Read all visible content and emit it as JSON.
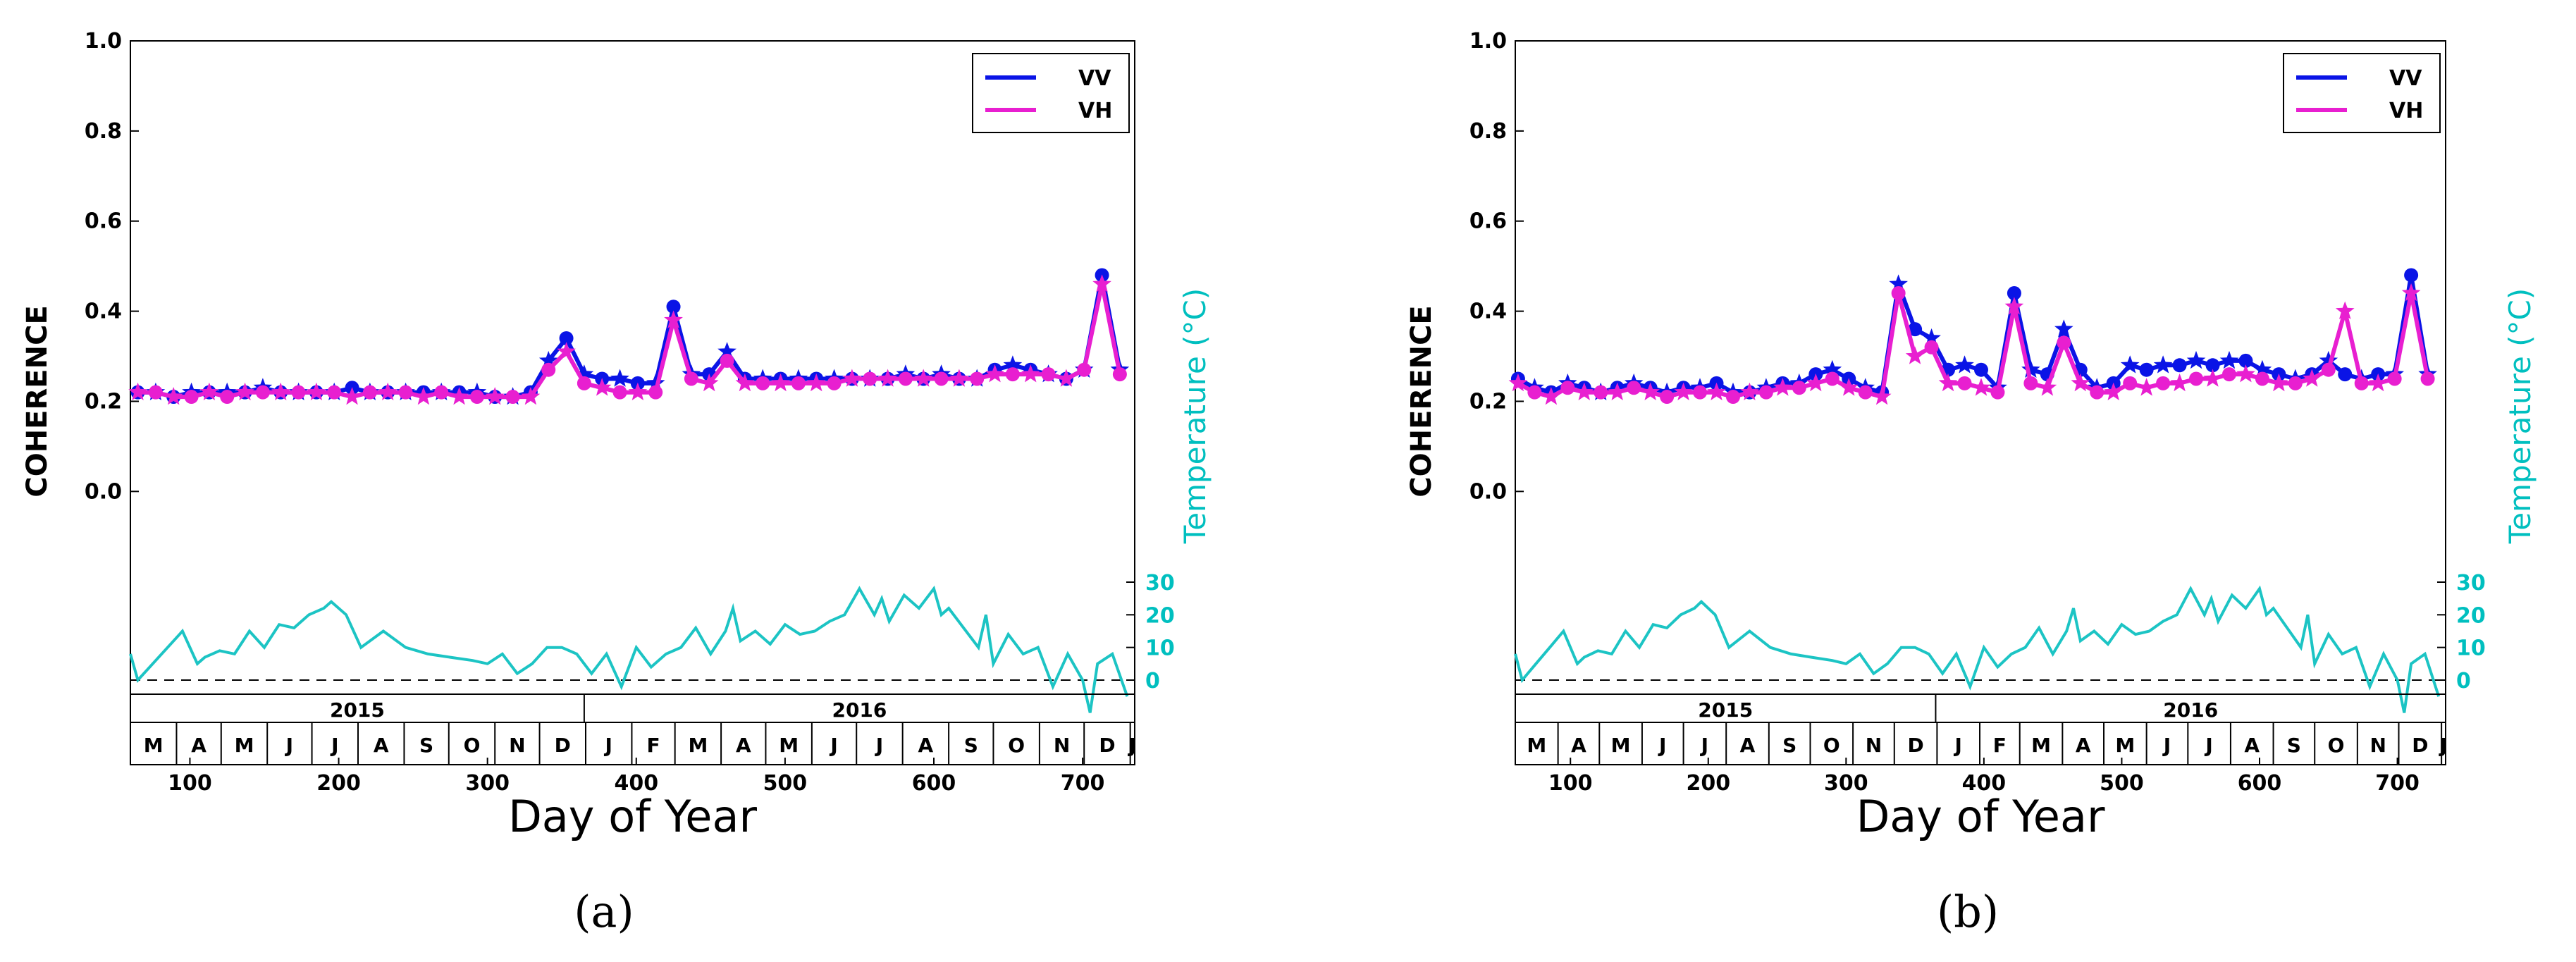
{
  "colors": {
    "vv": "#0a14e6",
    "vh": "#e81fd0",
    "temp": "#1cc4c4",
    "axis": "#000000"
  },
  "chart_data": [
    {
      "id": "a",
      "type": "line",
      "caption": "(a)",
      "xlabel": "Day of Year",
      "ylabel": "COHERENCE",
      "temp_label": "Temperature (°C)",
      "xlim": [
        60,
        735
      ],
      "ylim": [
        -0.45,
        1.0
      ],
      "yticks": [
        "0.0",
        "0.2",
        "0.4",
        "0.6",
        "0.8",
        "1.0"
      ],
      "ytick_values": [
        0.0,
        0.2,
        0.4,
        0.6,
        0.8,
        1.0
      ],
      "xticks": [
        "100",
        "200",
        "300",
        "400",
        "500",
        "600",
        "700"
      ],
      "xtick_values": [
        100,
        200,
        300,
        400,
        500,
        600,
        700
      ],
      "temp_ticks": [
        "0",
        "10",
        "20",
        "30"
      ],
      "temp_tick_values": [
        0,
        10,
        20,
        30
      ],
      "years": [
        {
          "label": "2015",
          "start": 60,
          "end": 365
        },
        {
          "label": "2016",
          "start": 365,
          "end": 735
        }
      ],
      "months": [
        "M",
        "A",
        "M",
        "J",
        "J",
        "A",
        "S",
        "O",
        "N",
        "D",
        "J",
        "F",
        "M",
        "A",
        "M",
        "J",
        "J",
        "A",
        "S",
        "O",
        "N",
        "D",
        "J"
      ],
      "month_starts": [
        60,
        91,
        121,
        152,
        182,
        213,
        244,
        274,
        305,
        335,
        366,
        397,
        426,
        457,
        487,
        518,
        548,
        579,
        610,
        640,
        671,
        701,
        732
      ],
      "legend": [
        "VV",
        "VH"
      ],
      "series": [
        {
          "name": "VV",
          "x": [
            65,
            77,
            89,
            101,
            113,
            125,
            137,
            149,
            161,
            173,
            185,
            197,
            209,
            221,
            233,
            245,
            257,
            269,
            281,
            293,
            305,
            317,
            329,
            341,
            353,
            365,
            377,
            389,
            401,
            413,
            425,
            437,
            449,
            461,
            473,
            485,
            497,
            509,
            521,
            533,
            545,
            557,
            569,
            581,
            593,
            605,
            617,
            629,
            641,
            653,
            665,
            677,
            689,
            701,
            713,
            725
          ],
          "y": [
            0.22,
            0.22,
            0.21,
            0.22,
            0.22,
            0.22,
            0.22,
            0.23,
            0.22,
            0.22,
            0.22,
            0.22,
            0.23,
            0.22,
            0.22,
            0.22,
            0.22,
            0.22,
            0.22,
            0.22,
            0.21,
            0.21,
            0.22,
            0.29,
            0.34,
            0.26,
            0.25,
            0.25,
            0.24,
            0.24,
            0.41,
            0.26,
            0.26,
            0.31,
            0.25,
            0.25,
            0.25,
            0.25,
            0.25,
            0.25,
            0.25,
            0.25,
            0.25,
            0.26,
            0.25,
            0.26,
            0.25,
            0.25,
            0.27,
            0.28,
            0.27,
            0.26,
            0.25,
            0.27,
            0.48,
            0.27
          ]
        },
        {
          "name": "VH",
          "x": [
            65,
            77,
            89,
            101,
            113,
            125,
            137,
            149,
            161,
            173,
            185,
            197,
            209,
            221,
            233,
            245,
            257,
            269,
            281,
            293,
            305,
            317,
            329,
            341,
            353,
            365,
            377,
            389,
            401,
            413,
            425,
            437,
            449,
            461,
            473,
            485,
            497,
            509,
            521,
            533,
            545,
            557,
            569,
            581,
            593,
            605,
            617,
            629,
            641,
            653,
            665,
            677,
            689,
            701,
            713,
            725
          ],
          "y": [
            0.22,
            0.22,
            0.21,
            0.21,
            0.22,
            0.21,
            0.22,
            0.22,
            0.22,
            0.22,
            0.22,
            0.22,
            0.21,
            0.22,
            0.22,
            0.22,
            0.21,
            0.22,
            0.21,
            0.21,
            0.21,
            0.21,
            0.21,
            0.27,
            0.31,
            0.24,
            0.23,
            0.22,
            0.22,
            0.22,
            0.38,
            0.25,
            0.24,
            0.29,
            0.24,
            0.24,
            0.24,
            0.24,
            0.24,
            0.24,
            0.25,
            0.25,
            0.25,
            0.25,
            0.25,
            0.25,
            0.25,
            0.25,
            0.26,
            0.26,
            0.26,
            0.26,
            0.25,
            0.27,
            0.46,
            0.26
          ]
        },
        {
          "name": "Temperature",
          "x": [
            60,
            65,
            75,
            85,
            95,
            105,
            110,
            120,
            130,
            140,
            150,
            160,
            170,
            180,
            190,
            195,
            205,
            215,
            230,
            245,
            260,
            275,
            290,
            300,
            310,
            320,
            330,
            340,
            350,
            360,
            370,
            380,
            390,
            400,
            410,
            420,
            430,
            440,
            450,
            460,
            465,
            470,
            480,
            490,
            500,
            510,
            520,
            530,
            540,
            550,
            560,
            565,
            570,
            580,
            590,
            600,
            605,
            610,
            620,
            630,
            635,
            640,
            650,
            660,
            670,
            680,
            690,
            700,
            705,
            710,
            720,
            730
          ],
          "y": [
            8,
            0,
            5,
            10,
            15,
            5,
            7,
            9,
            8,
            15,
            10,
            17,
            16,
            20,
            22,
            24,
            20,
            10,
            15,
            10,
            8,
            7,
            6,
            5,
            8,
            2,
            5,
            10,
            10,
            8,
            2,
            8,
            -2,
            10,
            4,
            8,
            10,
            16,
            8,
            15,
            22,
            12,
            15,
            11,
            17,
            14,
            15,
            18,
            20,
            28,
            20,
            25,
            18,
            26,
            22,
            28,
            20,
            22,
            16,
            10,
            20,
            5,
            14,
            8,
            10,
            -2,
            8,
            0,
            -10,
            5,
            8,
            -5
          ]
        }
      ]
    },
    {
      "id": "b",
      "type": "line",
      "caption": "(b)",
      "xlabel": "Day of Year",
      "ylabel": "COHERENCE",
      "temp_label": "Temperature (°C)",
      "xlim": [
        60,
        735
      ],
      "ylim": [
        -0.45,
        1.0
      ],
      "yticks": [
        "0.0",
        "0.2",
        "0.4",
        "0.6",
        "0.8",
        "1.0"
      ],
      "ytick_values": [
        0.0,
        0.2,
        0.4,
        0.6,
        0.8,
        1.0
      ],
      "xticks": [
        "100",
        "200",
        "300",
        "400",
        "500",
        "600",
        "700"
      ],
      "xtick_values": [
        100,
        200,
        300,
        400,
        500,
        600,
        700
      ],
      "temp_ticks": [
        "0",
        "10",
        "20",
        "30"
      ],
      "temp_tick_values": [
        0,
        10,
        20,
        30
      ],
      "years": [
        {
          "label": "2015",
          "start": 60,
          "end": 365
        },
        {
          "label": "2016",
          "start": 365,
          "end": 735
        }
      ],
      "months": [
        "M",
        "A",
        "M",
        "J",
        "J",
        "A",
        "S",
        "O",
        "N",
        "D",
        "J",
        "F",
        "M",
        "A",
        "M",
        "J",
        "J",
        "A",
        "S",
        "O",
        "N",
        "D",
        "J"
      ],
      "month_starts": [
        60,
        91,
        121,
        152,
        182,
        213,
        244,
        274,
        305,
        335,
        366,
        397,
        426,
        457,
        487,
        518,
        548,
        579,
        610,
        640,
        671,
        701,
        732
      ],
      "legend": [
        "VV",
        "VH"
      ],
      "series": [
        {
          "name": "VV",
          "x": [
            62,
            74,
            86,
            98,
            110,
            122,
            134,
            146,
            158,
            170,
            182,
            194,
            206,
            218,
            230,
            242,
            254,
            266,
            278,
            290,
            302,
            314,
            326,
            338,
            350,
            362,
            374,
            386,
            398,
            410,
            422,
            434,
            446,
            458,
            470,
            482,
            494,
            506,
            518,
            530,
            542,
            554,
            566,
            578,
            590,
            602,
            614,
            626,
            638,
            650,
            662,
            674,
            686,
            698,
            710,
            722
          ],
          "y": [
            0.25,
            0.23,
            0.22,
            0.24,
            0.23,
            0.22,
            0.23,
            0.24,
            0.23,
            0.22,
            0.23,
            0.23,
            0.24,
            0.22,
            0.22,
            0.23,
            0.24,
            0.24,
            0.26,
            0.27,
            0.25,
            0.23,
            0.22,
            0.46,
            0.36,
            0.34,
            0.27,
            0.28,
            0.27,
            0.23,
            0.44,
            0.27,
            0.26,
            0.36,
            0.27,
            0.23,
            0.24,
            0.28,
            0.27,
            0.28,
            0.28,
            0.29,
            0.28,
            0.29,
            0.29,
            0.27,
            0.26,
            0.25,
            0.26,
            0.29,
            0.26,
            0.25,
            0.26,
            0.26,
            0.48,
            0.26
          ]
        },
        {
          "name": "VH",
          "x": [
            62,
            74,
            86,
            98,
            110,
            122,
            134,
            146,
            158,
            170,
            182,
            194,
            206,
            218,
            230,
            242,
            254,
            266,
            278,
            290,
            302,
            314,
            326,
            338,
            350,
            362,
            374,
            386,
            398,
            410,
            422,
            434,
            446,
            458,
            470,
            482,
            494,
            506,
            518,
            530,
            542,
            554,
            566,
            578,
            590,
            602,
            614,
            626,
            638,
            650,
            662,
            674,
            686,
            698,
            710,
            722
          ],
          "y": [
            0.24,
            0.22,
            0.21,
            0.23,
            0.22,
            0.22,
            0.22,
            0.23,
            0.22,
            0.21,
            0.22,
            0.22,
            0.22,
            0.21,
            0.22,
            0.22,
            0.23,
            0.23,
            0.24,
            0.25,
            0.23,
            0.22,
            0.21,
            0.44,
            0.3,
            0.32,
            0.24,
            0.24,
            0.23,
            0.22,
            0.41,
            0.24,
            0.23,
            0.33,
            0.24,
            0.22,
            0.22,
            0.24,
            0.23,
            0.24,
            0.24,
            0.25,
            0.25,
            0.26,
            0.26,
            0.25,
            0.24,
            0.24,
            0.25,
            0.27,
            0.4,
            0.24,
            0.24,
            0.25,
            0.44,
            0.25
          ]
        },
        {
          "name": "Temperature",
          "x": [
            60,
            65,
            75,
            85,
            95,
            105,
            110,
            120,
            130,
            140,
            150,
            160,
            170,
            180,
            190,
            195,
            205,
            215,
            230,
            245,
            260,
            275,
            290,
            300,
            310,
            320,
            330,
            340,
            350,
            360,
            370,
            380,
            390,
            400,
            410,
            420,
            430,
            440,
            450,
            460,
            465,
            470,
            480,
            490,
            500,
            510,
            520,
            530,
            540,
            550,
            560,
            565,
            570,
            580,
            590,
            600,
            605,
            610,
            620,
            630,
            635,
            640,
            650,
            660,
            670,
            680,
            690,
            700,
            705,
            710,
            720,
            730
          ],
          "y": [
            8,
            0,
            5,
            10,
            15,
            5,
            7,
            9,
            8,
            15,
            10,
            17,
            16,
            20,
            22,
            24,
            20,
            10,
            15,
            10,
            8,
            7,
            6,
            5,
            8,
            2,
            5,
            10,
            10,
            8,
            2,
            8,
            -2,
            10,
            4,
            8,
            10,
            16,
            8,
            15,
            22,
            12,
            15,
            11,
            17,
            14,
            15,
            18,
            20,
            28,
            20,
            25,
            18,
            26,
            22,
            28,
            20,
            22,
            16,
            10,
            20,
            5,
            14,
            8,
            10,
            -2,
            8,
            0,
            -10,
            5,
            8,
            -5
          ]
        }
      ]
    }
  ]
}
